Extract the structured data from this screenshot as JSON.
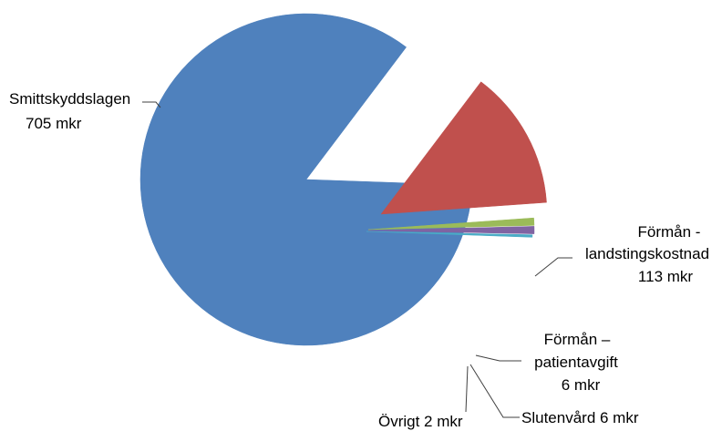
{
  "chart_data": {
    "type": "pie",
    "exploded": true,
    "title": "",
    "slices": [
      {
        "name": "Smittskyddslagen",
        "value": 705,
        "value_label": "705 mkr",
        "color": "#4F81BD"
      },
      {
        "name": "Förmån - landstingskostnad",
        "value": 113,
        "value_label": "113 mkr",
        "color": "#C0504D"
      },
      {
        "name": "Förmån – patientavgift",
        "value": 6,
        "value_label": "6 mkr",
        "color": "#9BBB59"
      },
      {
        "name": "Slutenvård",
        "value": 6,
        "value_label": "6 mkr",
        "color": "#8064A2"
      },
      {
        "name": "Övrigt",
        "value": 2,
        "value_label": "2 mkr",
        "color": "#4BACC6"
      }
    ],
    "labels": {
      "smitt": [
        "Smittskyddslagen",
        "705 mkr"
      ],
      "lands": [
        "Förmån -",
        "landstingskostnad",
        "113 mkr"
      ],
      "patient": [
        "Förmån –",
        "patientavgift",
        "6 mkr"
      ],
      "sluten": [
        "Slutenvård 6 mkr"
      ],
      "ovrigt": [
        "Övrigt 2 mkr"
      ]
    }
  }
}
